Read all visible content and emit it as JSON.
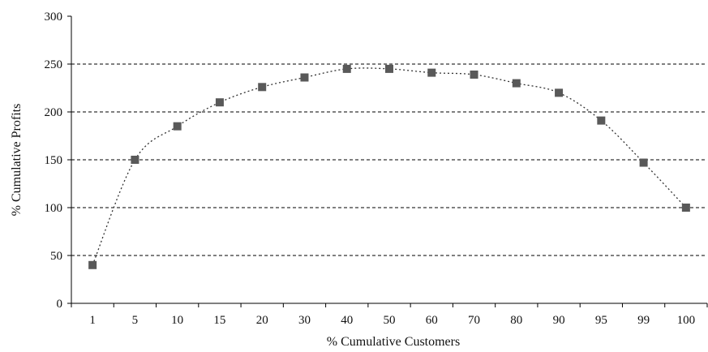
{
  "chart_data": {
    "type": "line",
    "categories": [
      "1",
      "5",
      "10",
      "15",
      "20",
      "30",
      "40",
      "50",
      "60",
      "70",
      "80",
      "90",
      "95",
      "99",
      "100"
    ],
    "series": [
      {
        "values": [
          40,
          150,
          185,
          210,
          226,
          236,
          245,
          245,
          241,
          239,
          230,
          220,
          191,
          147,
          100
        ],
        "marker": "square",
        "line_style": "dotted",
        "color": "#595959"
      }
    ],
    "xlabel": "% Cumulative Customers",
    "ylabel": "% Cumulative Profits",
    "ylim": [
      0,
      300
    ],
    "yticks": [
      0,
      50,
      100,
      150,
      200,
      250,
      300
    ],
    "grid": "horizontal-dashed",
    "axis_color": "#000000",
    "grid_color": "#000000"
  }
}
